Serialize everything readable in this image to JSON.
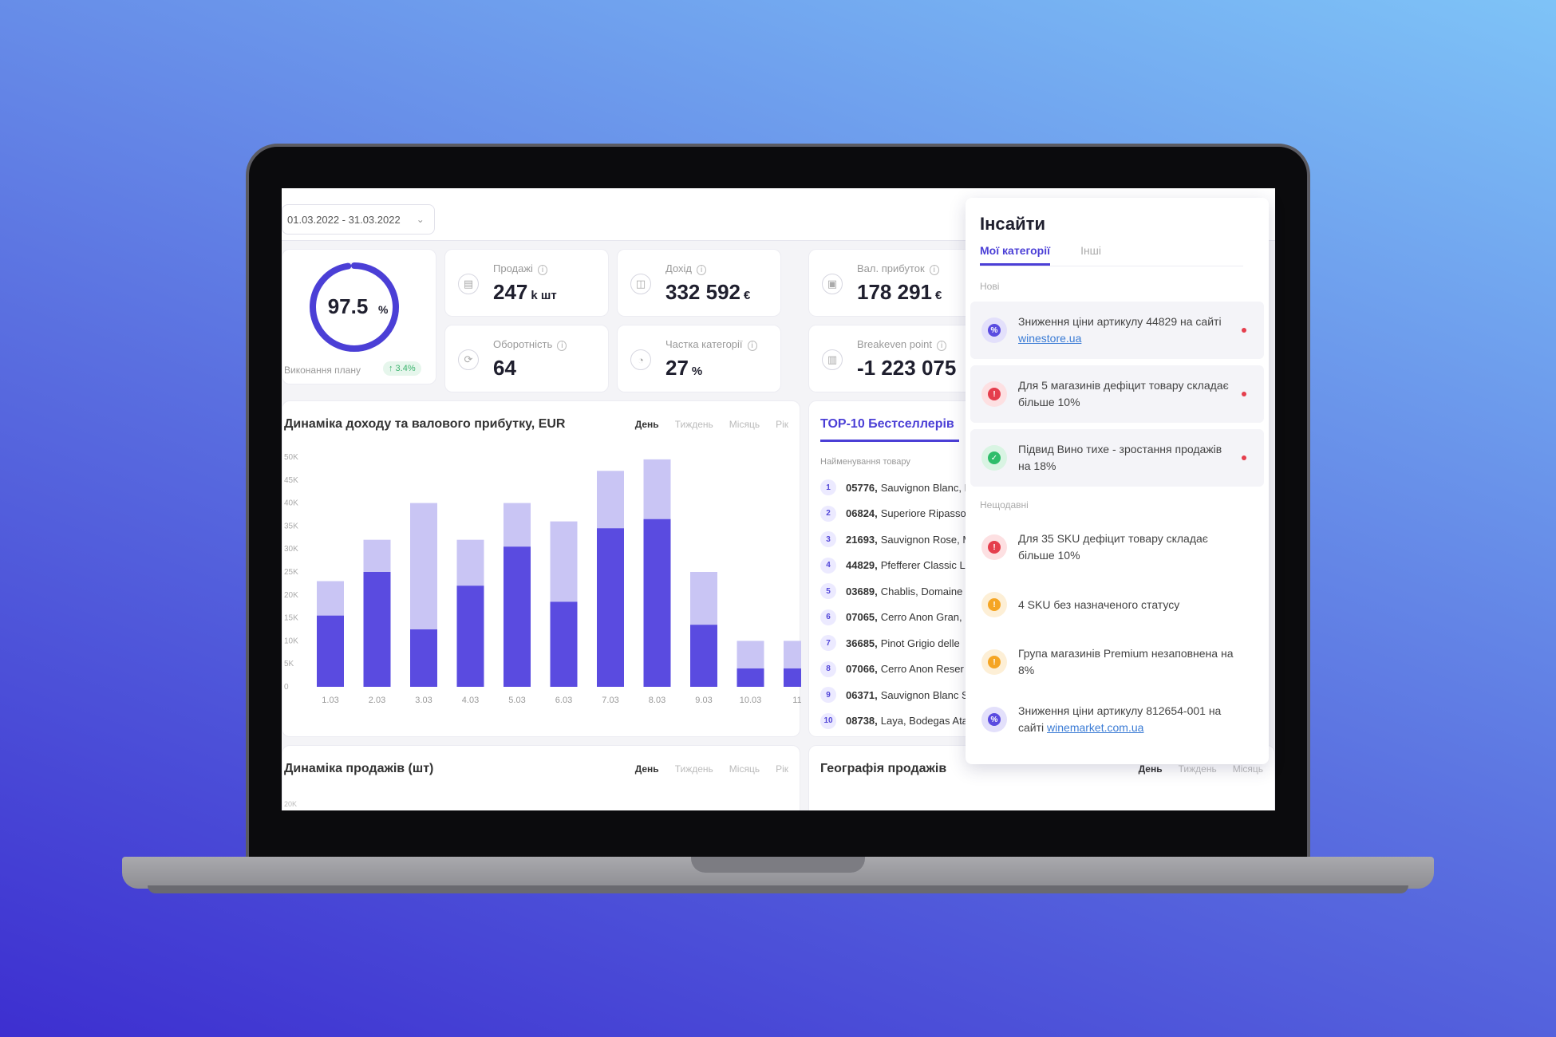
{
  "toolbar": {
    "date_range": "01.03.2022 - 31.03.2022"
  },
  "plan": {
    "value": "97.5",
    "unit": "%",
    "progress": 0.975,
    "label": "Виконання плану",
    "delta": "↑ 3.4%"
  },
  "kpis": [
    {
      "label": "Продажі",
      "value": "247",
      "unit": "k шт",
      "icon": "list-icon",
      "glyph": "▤"
    },
    {
      "label": "Дохід",
      "value": "332 592",
      "unit": "€",
      "icon": "wallet-icon",
      "glyph": "◫"
    },
    {
      "label": "Вал. прибуток",
      "value": "178 291",
      "unit": "€",
      "icon": "bag-icon",
      "glyph": "▣"
    },
    {
      "label": "Оборотність",
      "value": "64",
      "unit": "",
      "icon": "refresh-icon",
      "glyph": "⟳"
    },
    {
      "label": "Частка категорії",
      "value": "27",
      "unit": "%",
      "icon": "pie-icon",
      "glyph": "◔"
    },
    {
      "label": "Breakeven point",
      "value": "-1 223 075",
      "unit": "",
      "icon": "chart-icon",
      "glyph": "▥"
    }
  ],
  "periods": [
    "День",
    "Тиждень",
    "Місяць",
    "Рік"
  ],
  "revenue_chart": {
    "title": "Динаміка доходу та валового прибутку, EUR"
  },
  "chart_data": {
    "type": "bar",
    "title": "Динаміка доходу та валового прибутку, EUR",
    "categories": [
      "1.03",
      "2.03",
      "3.03",
      "4.03",
      "5.03",
      "6.03",
      "7.03",
      "8.03",
      "9.03",
      "10.03",
      "11"
    ],
    "series": [
      {
        "values": [
          15500,
          25000,
          12500,
          22000,
          30500,
          18500,
          34500,
          36500,
          13500,
          4000,
          4000
        ],
        "color": "#5a4be0"
      },
      {
        "values": [
          23000,
          32000,
          40000,
          32000,
          40000,
          36000,
          47000,
          49500,
          25000,
          10000,
          10000
        ],
        "color": "#c9c5f4"
      }
    ],
    "ylim": [
      0,
      50000
    ],
    "yticks": [
      "0",
      "5K",
      "10K",
      "15K",
      "20K",
      "25K",
      "30K",
      "35K",
      "40K",
      "45K",
      "50K"
    ],
    "grid": false
  },
  "top10": {
    "title": "TOP-10 Бестселлерів",
    "column": "Найменування товару",
    "items": [
      {
        "num": "1",
        "code": "05776,",
        "name": "Sauvignon Blanc, I"
      },
      {
        "num": "2",
        "code": "06824,",
        "name": "Superiore Ripasso"
      },
      {
        "num": "3",
        "code": "21693,",
        "name": "Sauvignon Rose, M"
      },
      {
        "num": "4",
        "code": "44829,",
        "name": "Pfefferer Classic L"
      },
      {
        "num": "5",
        "code": "03689,",
        "name": "Chablis, Domaine"
      },
      {
        "num": "6",
        "code": "07065,",
        "name": "Cerro Anon Gran, I"
      },
      {
        "num": "7",
        "code": "36685,",
        "name": "Pinot Grigio delle"
      },
      {
        "num": "8",
        "code": "07066,",
        "name": "Cerro Anon Reser"
      },
      {
        "num": "9",
        "code": "06371,",
        "name": "Sauvignon Blanc S"
      },
      {
        "num": "10",
        "code": "08738,",
        "name": "Laya, Bodegas Ata"
      }
    ]
  },
  "sales_chart": {
    "title": "Динаміка продажів (шт)",
    "tick": "20K"
  },
  "geo_chart": {
    "title": "Географія продажів"
  },
  "insights": {
    "title": "Інсайти",
    "tabs": [
      "Мої категорії",
      "Інші"
    ],
    "section_new": "Нові",
    "section_unread": "Нещодавні",
    "items": [
      {
        "before": "Зниження ціни артикулу 44829 на сайті ",
        "link": "winestore.ua",
        "color": "#5a4be0",
        "bg": "#e3e0fb",
        "glyph": "%",
        "icon": "discount-icon"
      },
      {
        "before": "Для 5 магазинів дефіцит товару складає більше 10%",
        "link": "",
        "color": "#e53e4d",
        "bg": "#fde0e2",
        "glyph": "!",
        "icon": "alert-icon"
      },
      {
        "before": "Підвид Вино тихе - зростання продажів на 18%",
        "link": "",
        "color": "#2ebd6a",
        "bg": "#d9f4e3",
        "glyph": "✓",
        "icon": "check-icon"
      },
      {
        "before": "Для 35 SKU дефіцит товару складає більше 10%",
        "link": "",
        "color": "#e53e4d",
        "bg": "#fde0e2",
        "glyph": "!",
        "icon": "alert-icon"
      },
      {
        "before": "4 SKU без назначеного статусу",
        "link": "",
        "color": "#f5a524",
        "bg": "#fdefd6",
        "glyph": "!",
        "icon": "warning-icon"
      },
      {
        "before": "Група магазинів Premium незаповнена на 8%",
        "link": "",
        "color": "#f5a524",
        "bg": "#fdefd6",
        "glyph": "!",
        "icon": "warning-icon"
      },
      {
        "before": "Зниження ціни артикулу 812654-001 на сайті ",
        "link": "winemarket.com.ua",
        "color": "#5a4be0",
        "bg": "#e3e0fb",
        "glyph": "%",
        "icon": "discount-icon"
      }
    ]
  }
}
